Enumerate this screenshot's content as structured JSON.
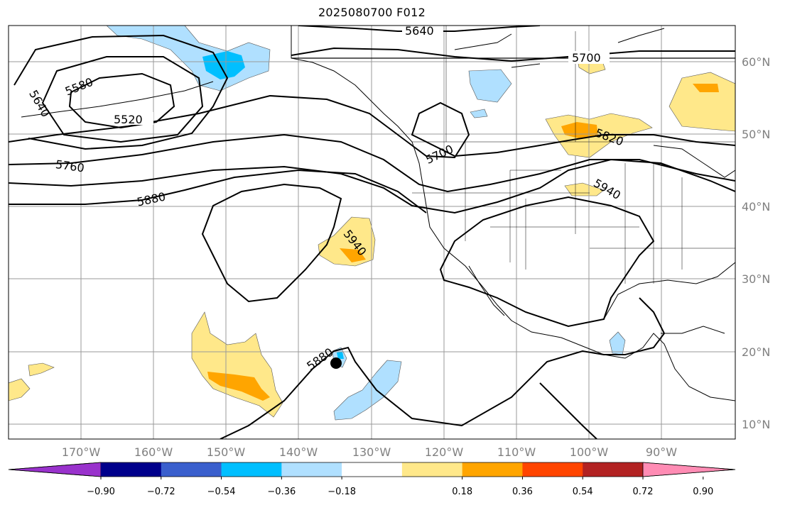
{
  "title": "2025080700 F012",
  "lat_labels": [
    "60°N",
    "50°N",
    "40°N",
    "30°N",
    "20°N",
    "10°N"
  ],
  "lon_labels": [
    "170°W",
    "160°W",
    "150°W",
    "140°W",
    "130°W",
    "120°W",
    "110°W",
    "100°W",
    "90°W"
  ],
  "contour_labels": [
    "5640",
    "5700",
    "5580",
    "5640",
    "5520",
    "5700",
    "5820",
    "5760",
    "5880",
    "5940",
    "5940",
    "5880"
  ],
  "colorbar": {
    "ticks": [
      "−0.90",
      "−0.72",
      "−0.54",
      "−0.36",
      "−0.18",
      "0.18",
      "0.36",
      "0.54",
      "0.72",
      "0.90"
    ],
    "colors": [
      "#9932cc",
      "#00008b",
      "#3a5fcd",
      "#00bfff",
      "#b0e0ff",
      "#ffffff",
      "#ffe88a",
      "#ffa500",
      "#ff4500",
      "#b22222",
      "#ff8cb4"
    ]
  },
  "colors": {
    "light_blue": "#b0e0ff",
    "blue": "#00bfff",
    "light_yellow": "#ffe88a",
    "orange": "#ffa500"
  }
}
